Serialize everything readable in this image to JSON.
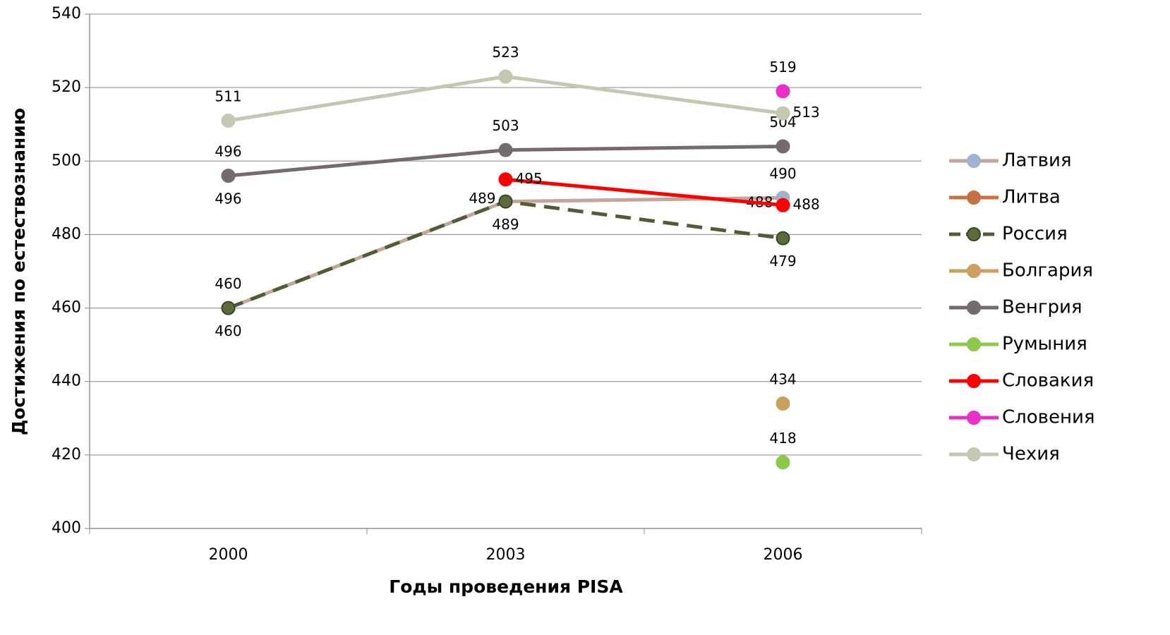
{
  "chart_data": {
    "type": "line",
    "x_label": "Годы проведения PISA",
    "y_label": "Достижения по естествознанию",
    "categories": [
      "2000",
      "2003",
      "2006"
    ],
    "ylim": [
      400,
      540
    ],
    "yticks": [
      400,
      420,
      440,
      460,
      480,
      500,
      520,
      540
    ],
    "grid": true,
    "legend": "right",
    "series": [
      {
        "name": "Латвия",
        "color": "#c4a59a",
        "marker_color": "#9fb3cf",
        "values": [
          460,
          489,
          490
        ]
      },
      {
        "name": "Литва",
        "color": "#c87040",
        "marker_color": "#c87040",
        "values": [
          null,
          null,
          488
        ]
      },
      {
        "name": "Россия",
        "color": "#4f5c38",
        "marker_color": "#5c6a3e",
        "line_style": "dashed",
        "values": [
          460,
          489,
          479
        ]
      },
      {
        "name": "Болгария",
        "color": "#c8a060",
        "marker_color": "#c8a060",
        "values": [
          496,
          null,
          434
        ]
      },
      {
        "name": "Венгрия",
        "color": "#756a6e",
        "marker_color": "#756a6e",
        "values": [
          496,
          503,
          504
        ]
      },
      {
        "name": "Румыния",
        "color": "#8cc84a",
        "marker_color": "#8cc84a",
        "values": [
          null,
          null,
          418
        ]
      },
      {
        "name": "Словакия",
        "color": "#ff0000",
        "marker_color": "#ff0000",
        "values": [
          null,
          495,
          488
        ]
      },
      {
        "name": "Словения",
        "color": "#e830c8",
        "marker_color": "#e830c8",
        "values": [
          null,
          null,
          519
        ]
      },
      {
        "name": "Чехия",
        "color": "#c4c8b0",
        "marker_color": "#c4c8b0",
        "values": [
          511,
          523,
          513
        ]
      }
    ]
  }
}
